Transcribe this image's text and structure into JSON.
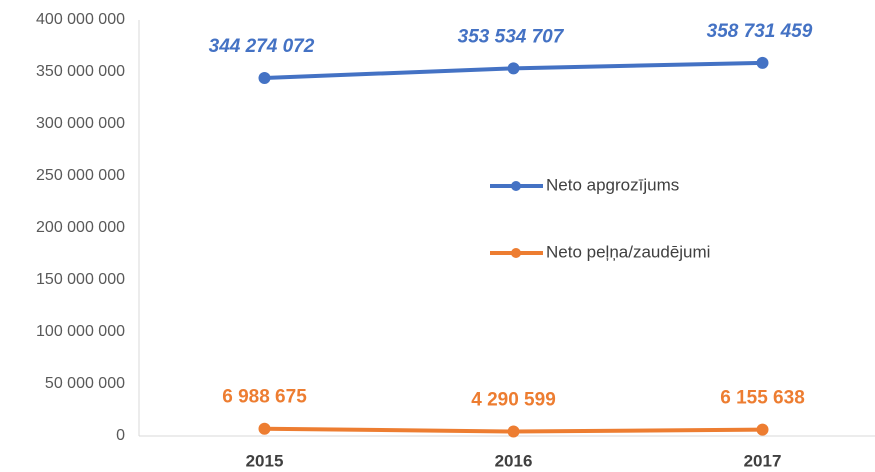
{
  "chart_data": {
    "type": "line",
    "categories": [
      "2015",
      "2016",
      "2017"
    ],
    "series": [
      {
        "name": "Neto apgrozījums",
        "color": "#4472c4",
        "values": [
          344274072,
          353534707,
          358731459
        ],
        "value_labels": [
          "344 274 072",
          "353 534 707",
          "358 731 459"
        ]
      },
      {
        "name": "Neto peļņa/zaudējumi",
        "color": "#ed7d31",
        "values": [
          6988675,
          4290599,
          6155638
        ],
        "value_labels": [
          "6 988 675",
          "4 290 599",
          "6 155 638"
        ]
      }
    ],
    "ylim": [
      0,
      400000000
    ],
    "yticks": [
      0,
      {
        "value": 50000000,
        "label": "50 000 000"
      },
      {
        "value": 100000000,
        "label": "100 000 000"
      },
      {
        "value": 150000000,
        "label": "150 000 000"
      },
      {
        "value": 200000000,
        "label": "200 000 000"
      },
      {
        "value": 250000000,
        "label": "250 000 000"
      },
      {
        "value": 300000000,
        "label": "300 000 000"
      },
      {
        "value": 350000000,
        "label": "350 000 000"
      },
      {
        "value": 400000000,
        "label": "400 000 000"
      }
    ],
    "grid": false
  }
}
